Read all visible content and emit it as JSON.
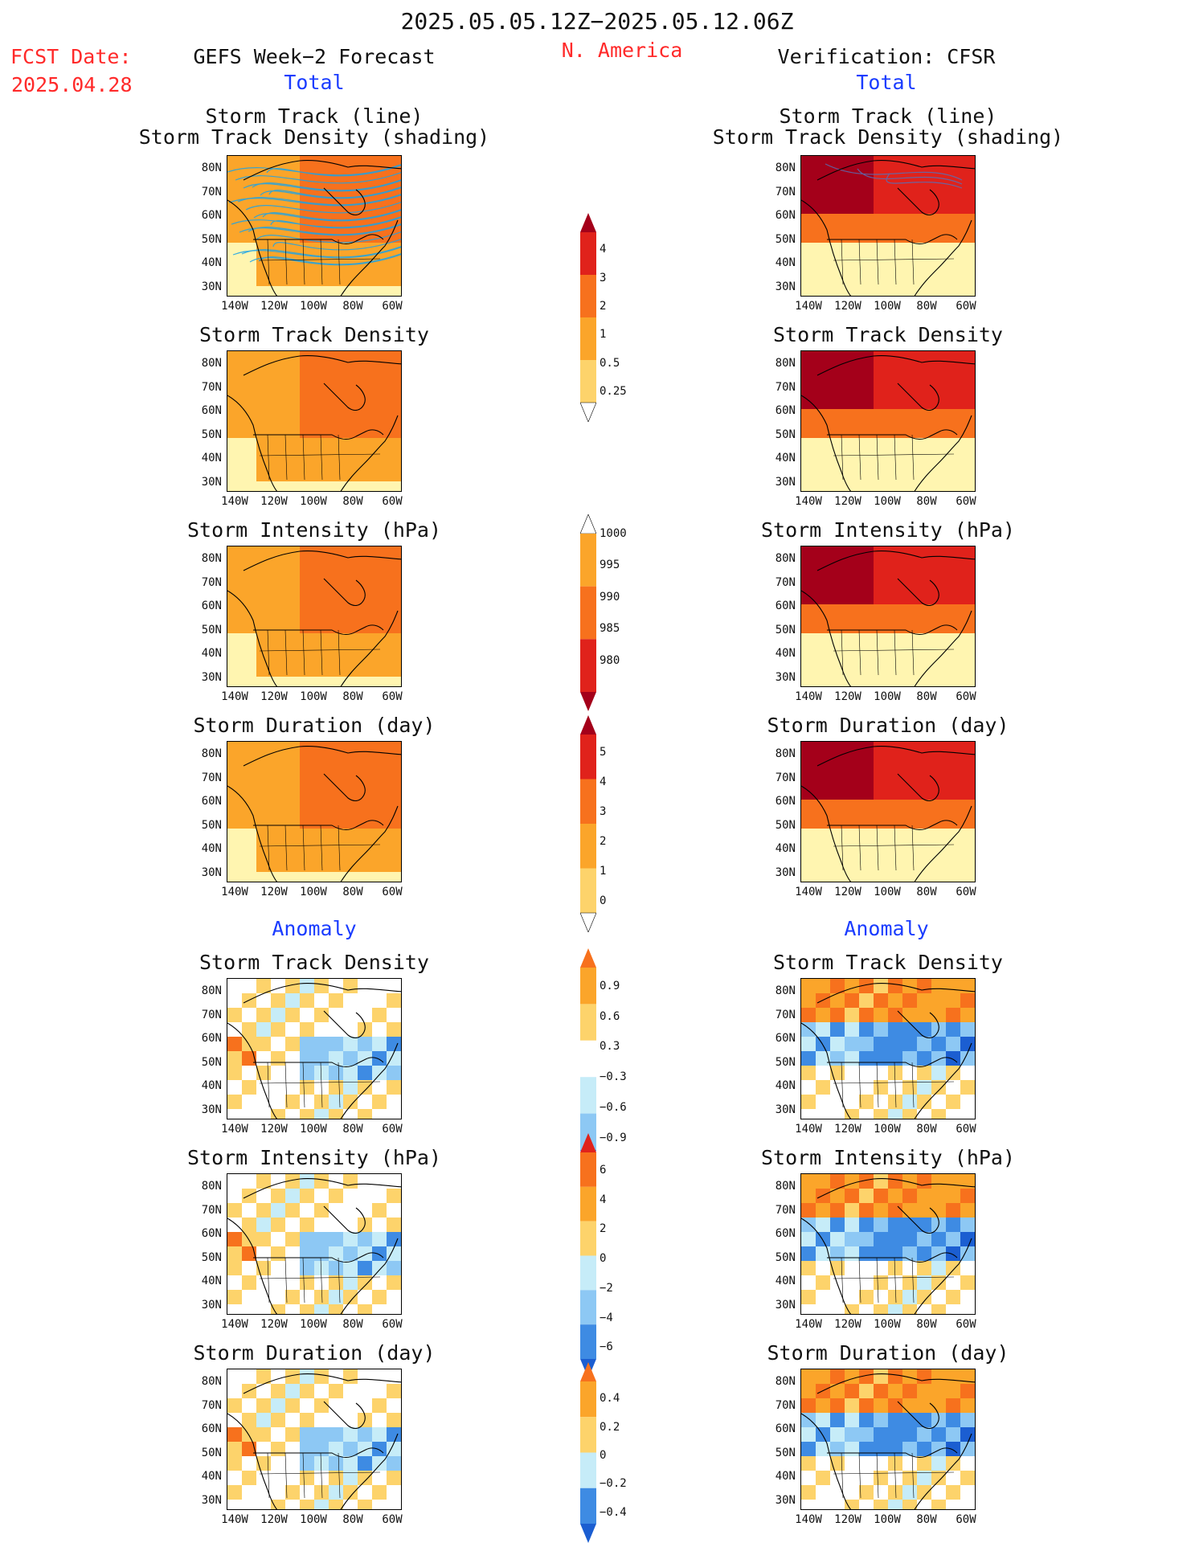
{
  "header": {
    "period": "2025.05.05.12Z−2025.05.12.06Z",
    "region": "N. America",
    "fcst_label": "FCST Date:",
    "fcst_date": "2025.04.28",
    "left_title": "GEFS Week−2 Forecast",
    "right_title": "Verification: CFSR"
  },
  "sections": {
    "total": "Total",
    "anomaly": "Anomaly"
  },
  "colors": {
    "red_text": "#ff2a2a",
    "blue_text": "#1a3cff",
    "yellow_light": "#fff5b0",
    "yellow": "#fdd36b",
    "orange": "#fba52a",
    "orange_red": "#f7711d",
    "red": "#e0221b",
    "dark_red": "#a4001a",
    "light_blue": "#c6ecf8",
    "blue_mid": "#8dc8f4",
    "blue": "#3e8be3",
    "dark_blue": "#1b5ed1",
    "track_line": "#1aa3e8"
  },
  "axes": {
    "lat": [
      "80N",
      "70N",
      "60N",
      "50N",
      "40N",
      "30N"
    ],
    "lon": [
      "140W",
      "120W",
      "100W",
      "80W",
      "60W"
    ]
  },
  "panels": {
    "forecast": [
      {
        "title1": "Storm Track (line)",
        "title2": "Storm Track Density (shading)"
      },
      {
        "title1": "Storm Track Density"
      },
      {
        "title1": "Storm Intensity (hPa)"
      },
      {
        "title1": "Storm Duration (day)"
      },
      {
        "title1": "Storm Track Density"
      },
      {
        "title1": "Storm Intensity (hPa)"
      },
      {
        "title1": "Storm Duration (day)"
      }
    ],
    "verification": [
      {
        "title1": "Storm Track (line)",
        "title2": "Storm Track Density (shading)"
      },
      {
        "title1": "Storm Track Density"
      },
      {
        "title1": "Storm Intensity (hPa)"
      },
      {
        "title1": "Storm Duration (day)"
      },
      {
        "title1": "Storm Track Density"
      },
      {
        "title1": "Storm Intensity (hPa)"
      },
      {
        "title1": "Storm Duration (day)"
      }
    ]
  },
  "colorbars": [
    {
      "labels": [
        "4",
        "3",
        "2",
        "1",
        "0.5",
        "0.25"
      ]
    },
    {
      "labels": [
        "1000",
        "995",
        "990",
        "985",
        "980"
      ]
    },
    {
      "labels": [
        "5",
        "4",
        "3",
        "2",
        "1",
        "0"
      ]
    },
    {
      "labels": [
        "0.9",
        "0.6",
        "0.3",
        "−0.3",
        "−0.6",
        "−0.9"
      ]
    },
    {
      "labels": [
        "6",
        "4",
        "2",
        "0",
        "−2",
        "−4",
        "−6"
      ]
    },
    {
      "labels": [
        "0.4",
        "0.2",
        "0",
        "−0.2",
        "−0.4"
      ]
    }
  ]
}
